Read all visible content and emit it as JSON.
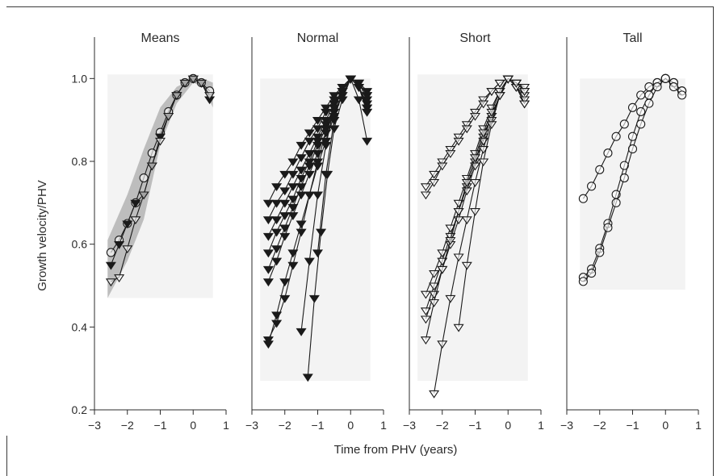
{
  "chart_data": {
    "type": "line",
    "xlabel": "Time from PHV (years)",
    "ylabel": "Growth velocity/PHV",
    "xlim": [
      -3,
      1
    ],
    "ylim": [
      0.2,
      1.1
    ],
    "xticks": [
      -3,
      -2,
      -1,
      0,
      1
    ],
    "xtick_labels": [
      "−3",
      "−2",
      "−1",
      "0",
      "1"
    ],
    "yticks": [
      0.2,
      0.4,
      0.6,
      0.8,
      1.0
    ],
    "ytick_labels": [
      "0.2",
      "0.4",
      "0.6",
      "0.8",
      "1.0"
    ],
    "background_band_color": "#f3f3f3",
    "shaded_region_color": "#bdbdbd",
    "line_color": "#1a1a1a",
    "panels": [
      {
        "title": "Means",
        "band": [
          -2.6,
          0.6,
          0.47,
          1.01
        ],
        "shaded": [
          [
            -2.6,
            0.47
          ],
          [
            -2.0,
            0.56
          ],
          [
            -1.5,
            0.66
          ],
          [
            -1.0,
            0.84
          ],
          [
            -0.5,
            0.94
          ],
          [
            0.0,
            0.99
          ],
          [
            0.3,
            0.98
          ],
          [
            0.6,
            0.93
          ],
          [
            0.6,
            0.99
          ],
          [
            0.3,
            1.0
          ],
          [
            0.0,
            1.0
          ],
          [
            -0.5,
            0.98
          ],
          [
            -1.0,
            0.93
          ],
          [
            -1.5,
            0.83
          ],
          [
            -2.0,
            0.72
          ],
          [
            -2.6,
            0.61
          ]
        ],
        "series": [
          {
            "marker": "circle",
            "x": [
              -2.5,
              -2.25,
              -2.0,
              -1.75,
              -1.5,
              -1.25,
              -1.0,
              -0.75,
              -0.5,
              -0.25,
              0.0,
              0.25,
              0.5
            ],
            "y": [
              0.58,
              0.61,
              0.65,
              0.7,
              0.76,
              0.82,
              0.87,
              0.92,
              0.96,
              0.99,
              1.0,
              0.99,
              0.97
            ]
          },
          {
            "marker": "triangle-filled",
            "x": [
              -2.5,
              -2.25,
              -2.0,
              -1.75,
              -1.5,
              -1.25,
              -1.0,
              -0.75,
              -0.5,
              -0.25,
              0.0,
              0.25,
              0.5
            ],
            "y": [
              0.55,
              0.6,
              0.65,
              0.7,
              0.72,
              0.79,
              0.86,
              0.91,
              0.96,
              0.99,
              1.0,
              0.99,
              0.95
            ]
          },
          {
            "marker": "triangle-open",
            "x": [
              -2.5,
              -2.25,
              -2.0,
              -1.75,
              -1.5,
              -1.25,
              -1.0,
              -0.75,
              -0.5,
              -0.25,
              0.0,
              0.25,
              0.5
            ],
            "y": [
              0.51,
              0.52,
              0.59,
              0.66,
              0.72,
              0.79,
              0.85,
              0.91,
              0.96,
              0.99,
              1.0,
              0.99,
              0.96
            ]
          }
        ]
      },
      {
        "title": "Normal",
        "band": [
          -2.75,
          0.6,
          0.27,
          1.0
        ],
        "shaded": [],
        "series": [
          {
            "marker": "triangle-filled",
            "x": [
              -2.5,
              -2.25,
              -2.0,
              -1.75,
              -1.5,
              -1.25,
              -1.0,
              -0.75,
              -0.5,
              -0.25,
              0.0,
              0.25,
              0.5
            ],
            "y": [
              0.7,
              0.74,
              0.77,
              0.8,
              0.84,
              0.87,
              0.9,
              0.93,
              0.96,
              0.98,
              1.0,
              0.99,
              0.96
            ]
          },
          {
            "marker": "triangle-filled",
            "x": [
              -2.5,
              -2.25,
              -2.0,
              -1.75,
              -1.5,
              -1.25,
              -1.0,
              -0.75,
              -0.5,
              -0.25,
              0.0,
              0.25,
              0.5
            ],
            "y": [
              0.66,
              0.7,
              0.73,
              0.77,
              0.81,
              0.85,
              0.88,
              0.92,
              0.95,
              0.98,
              1.0,
              0.99,
              0.95
            ]
          },
          {
            "marker": "triangle-filled",
            "x": [
              -2.5,
              -2.25,
              -2.0,
              -1.75,
              -1.5,
              -1.25,
              -1.0,
              -0.75,
              -0.5,
              -0.25,
              0.0,
              0.25,
              0.5
            ],
            "y": [
              0.62,
              0.66,
              0.7,
              0.74,
              0.78,
              0.82,
              0.86,
              0.9,
              0.94,
              0.97,
              1.0,
              0.98,
              0.94
            ]
          },
          {
            "marker": "triangle-filled",
            "x": [
              -2.5,
              -2.25,
              -2.0,
              -1.75,
              -1.5,
              -1.25,
              -1.0,
              -0.75,
              -0.5,
              -0.25,
              0.0,
              0.25,
              0.5
            ],
            "y": [
              0.58,
              0.63,
              0.67,
              0.71,
              0.76,
              0.8,
              0.85,
              0.89,
              0.93,
              0.97,
              1.0,
              0.98,
              0.93
            ]
          },
          {
            "marker": "triangle-filled",
            "x": [
              -2.5,
              -2.25,
              -2.0,
              -1.75,
              -1.5,
              -1.25,
              -1.0,
              -0.75,
              -0.5,
              -0.25,
              0.0,
              0.25,
              0.5
            ],
            "y": [
              0.54,
              0.59,
              0.64,
              0.69,
              0.74,
              0.79,
              0.84,
              0.88,
              0.93,
              0.97,
              1.0,
              0.98,
              0.92
            ]
          },
          {
            "marker": "triangle-filled",
            "x": [
              -2.5,
              -2.25,
              -2.0,
              -1.75,
              -1.5,
              -1.25,
              -1.0,
              -0.75,
              -0.5,
              -0.25,
              0.0,
              0.25,
              0.5
            ],
            "y": [
              0.51,
              0.56,
              0.62,
              0.67,
              0.72,
              0.77,
              0.82,
              0.87,
              0.92,
              0.96,
              1.0,
              0.98,
              0.93
            ]
          },
          {
            "marker": "triangle-filled",
            "x": [
              -2.5,
              -2.25,
              -2.0,
              -1.75,
              -1.5,
              -1.25,
              -1.0,
              -0.75,
              -0.5,
              -0.25,
              0.0,
              0.25,
              0.5
            ],
            "y": [
              0.36,
              0.43,
              0.51,
              0.58,
              0.65,
              0.72,
              0.79,
              0.85,
              0.91,
              0.96,
              1.0,
              0.98,
              0.92
            ]
          },
          {
            "marker": "triangle-filled",
            "x": [
              -2.5,
              -2.25,
              -2.0,
              -1.75,
              -1.5,
              -1.25,
              -1.0,
              -0.75,
              -0.5,
              -0.25,
              0.0,
              0.25,
              0.5
            ],
            "y": [
              0.37,
              0.41,
              0.47,
              0.55,
              0.63,
              0.72,
              0.8,
              0.87,
              0.93,
              0.97,
              1.0,
              0.98,
              0.93
            ]
          },
          {
            "marker": "triangle-filled",
            "x": [
              -1.5,
              -1.25,
              -1.0,
              -0.75,
              -0.5,
              -0.25,
              0.0,
              0.25,
              0.5
            ],
            "y": [
              0.39,
              0.56,
              0.72,
              0.84,
              0.93,
              0.98,
              1.0,
              0.99,
              0.96
            ]
          },
          {
            "marker": "triangle-filled",
            "x": [
              -1.3,
              -1.1,
              -0.9,
              -0.7,
              -0.5,
              -0.25,
              0.0,
              0.25,
              0.5
            ],
            "y": [
              0.28,
              0.47,
              0.63,
              0.77,
              0.88,
              0.95,
              1.0,
              0.99,
              0.97
            ]
          },
          {
            "marker": "triangle-filled",
            "x": [
              -1.0,
              -0.75,
              -0.5,
              -0.25,
              0.0,
              0.25,
              0.5
            ],
            "y": [
              0.58,
              0.77,
              0.9,
              0.97,
              1.0,
              0.95,
              0.85
            ]
          }
        ]
      },
      {
        "title": "Short",
        "band": [
          -2.75,
          0.6,
          0.27,
          1.01
        ],
        "shaded": [],
        "series": [
          {
            "marker": "triangle-open",
            "x": [
              -2.5,
              -2.25,
              -2.0,
              -1.75,
              -1.5,
              -1.25,
              -1.0,
              -0.75,
              -0.5,
              -0.25,
              0.0,
              0.25,
              0.5
            ],
            "y": [
              0.74,
              0.77,
              0.8,
              0.83,
              0.86,
              0.89,
              0.92,
              0.95,
              0.97,
              0.99,
              1.0,
              0.99,
              0.97
            ]
          },
          {
            "marker": "triangle-open",
            "x": [
              -2.5,
              -2.25,
              -2.0,
              -1.75,
              -1.5,
              -1.25,
              -1.0,
              -0.75,
              -0.5,
              -0.25,
              0.0,
              0.25,
              0.5
            ],
            "y": [
              0.72,
              0.75,
              0.79,
              0.82,
              0.85,
              0.88,
              0.91,
              0.94,
              0.97,
              0.99,
              1.0,
              0.98,
              0.94
            ]
          },
          {
            "marker": "triangle-open",
            "x": [
              -2.5,
              -2.25,
              -2.0,
              -1.75,
              -1.5,
              -1.25,
              -1.0,
              -0.75,
              -0.5,
              -0.25,
              0.0,
              0.25,
              0.5
            ],
            "y": [
              0.48,
              0.53,
              0.58,
              0.64,
              0.7,
              0.76,
              0.82,
              0.88,
              0.93,
              0.97,
              1.0,
              0.99,
              0.98
            ]
          },
          {
            "marker": "triangle-open",
            "x": [
              -2.5,
              -2.25,
              -2.0,
              -1.75,
              -1.5,
              -1.25,
              -1.0,
              -0.75,
              -0.5,
              -0.25,
              0.0,
              0.25,
              0.5
            ],
            "y": [
              0.44,
              0.5,
              0.56,
              0.62,
              0.68,
              0.74,
              0.8,
              0.86,
              0.91,
              0.96,
              1.0,
              0.99,
              0.97
            ]
          },
          {
            "marker": "triangle-open",
            "x": [
              -2.5,
              -2.25,
              -2.0,
              -1.75,
              -1.5,
              -1.25,
              -1.0,
              -0.75,
              -0.5,
              -0.25,
              0.0,
              0.25,
              0.5
            ],
            "y": [
              0.42,
              0.48,
              0.54,
              0.6,
              0.66,
              0.73,
              0.79,
              0.85,
              0.91,
              0.96,
              1.0,
              0.98,
              0.96
            ]
          },
          {
            "marker": "triangle-open",
            "x": [
              -2.5,
              -2.25,
              -2.0,
              -1.75,
              -1.5,
              -1.25,
              -1.0,
              -0.75,
              -0.5,
              -0.25,
              0.0,
              0.25,
              0.5
            ],
            "y": [
              0.37,
              0.46,
              0.54,
              0.61,
              0.68,
              0.75,
              0.81,
              0.87,
              0.92,
              0.97,
              1.0,
              0.98,
              0.95
            ]
          },
          {
            "marker": "triangle-open",
            "x": [
              -2.25,
              -2.0,
              -1.75,
              -1.5,
              -1.25,
              -1.0,
              -0.75,
              -0.5,
              -0.25,
              0.0,
              0.25,
              0.5
            ],
            "y": [
              0.24,
              0.36,
              0.47,
              0.57,
              0.66,
              0.75,
              0.83,
              0.9,
              0.96,
              1.0,
              0.98,
              0.94
            ]
          },
          {
            "marker": "triangle-open",
            "x": [
              -1.5,
              -1.25,
              -1.0,
              -0.75,
              -0.5,
              -0.25,
              0.0,
              0.25,
              0.5
            ],
            "y": [
              0.4,
              0.55,
              0.68,
              0.8,
              0.89,
              0.96,
              1.0,
              0.99,
              0.97
            ]
          }
        ]
      },
      {
        "title": "Tall",
        "band": [
          -2.6,
          0.6,
          0.49,
          1.0
        ],
        "shaded": [],
        "series": [
          {
            "marker": "circle",
            "x": [
              -2.5,
              -2.25,
              -2.0,
              -1.75,
              -1.5,
              -1.25,
              -1.0,
              -0.75,
              -0.5,
              -0.25,
              0.0,
              0.25,
              0.5
            ],
            "y": [
              0.71,
              0.74,
              0.78,
              0.82,
              0.86,
              0.89,
              0.93,
              0.96,
              0.98,
              0.99,
              1.0,
              0.99,
              0.97
            ]
          },
          {
            "marker": "circle",
            "x": [
              -2.5,
              -2.25,
              -2.0,
              -1.75,
              -1.5,
              -1.25,
              -1.0,
              -0.75,
              -0.5,
              -0.25,
              0.0,
              0.25,
              0.5
            ],
            "y": [
              0.52,
              0.54,
              0.59,
              0.65,
              0.72,
              0.79,
              0.86,
              0.92,
              0.96,
              0.99,
              1.0,
              0.99,
              0.97
            ]
          },
          {
            "marker": "circle",
            "x": [
              -2.5,
              -2.25,
              -2.0,
              -1.75,
              -1.5,
              -1.25,
              -1.0,
              -0.75,
              -0.5,
              -0.25,
              0.0,
              0.25,
              0.5
            ],
            "y": [
              0.51,
              0.53,
              0.58,
              0.64,
              0.7,
              0.76,
              0.83,
              0.89,
              0.94,
              0.98,
              1.0,
              0.98,
              0.96
            ]
          }
        ]
      }
    ]
  }
}
